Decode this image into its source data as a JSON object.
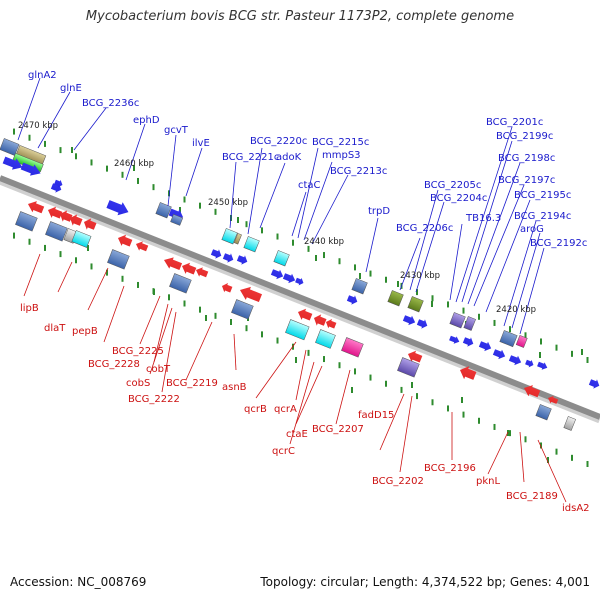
{
  "title": "Mycobacterium bovis BCG str. Pasteur 1173P2, complete genome",
  "footer": {
    "accession": "Accession: NC_008769",
    "summary": "Topology: circular; Length: 4,374,522 bp; Genes: 4,001"
  },
  "colors": {
    "forward_label": "#1a1acc",
    "reverse_label": "#cc1111",
    "backbone": "#8c8c8c",
    "tick": "#2e8b2e",
    "forward_gene": "#1515ee",
    "reverse_gene": "#ee1515"
  },
  "scale": [
    {
      "text": "2470 kbp"
    },
    {
      "text": "2460 kbp"
    },
    {
      "text": "2450 kbp"
    },
    {
      "text": "2440 kbp"
    },
    {
      "text": "2430 kbp"
    },
    {
      "text": "2420 kbp"
    }
  ],
  "forward_labels": [
    "glnA2",
    "glnE",
    "BCG_2236c",
    "ephD",
    "gcvT",
    "ilvE",
    "BCG_2221c",
    "BCG_2220c",
    "adoK",
    "BCG_2215c",
    "mmpS3",
    "BCG_2213c",
    "ctaC",
    "trpD",
    "BCG_2206c",
    "BCG_2205c",
    "BCG_2204c",
    "TB16.3",
    "BCG_2201c",
    "BCG_2199c",
    "BCG_2198c",
    "BCG_2197c",
    "BCG_2195c",
    "BCG_2194c",
    "aroG",
    "BCG_2192c"
  ],
  "reverse_labels": [
    "lipB",
    "dlaT",
    "pepB",
    "BCG_2228",
    "BCG_2225",
    "cobT",
    "cobS",
    "BCG_2222",
    "BCG_2219",
    "asnB",
    "qcrB",
    "qcrA",
    "ctaE",
    "qcrC",
    "BCG_2207",
    "fadD15",
    "BCG_2202",
    "BCG_2196",
    "pknL",
    "BCG_2189",
    "idsA2"
  ]
}
